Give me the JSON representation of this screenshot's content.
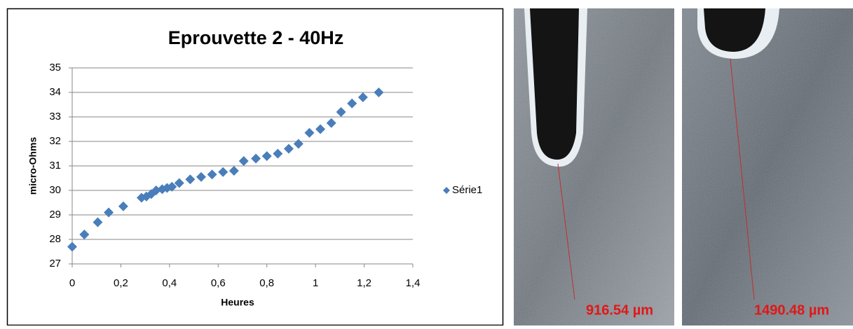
{
  "chart_data": {
    "type": "scatter",
    "title": "Eprouvette 2 - 40Hz",
    "x_label": "Heures",
    "y_label": "micro-Ohms",
    "series": [
      {
        "name": "Série1",
        "color": "#4a7ebb",
        "x": [
          0,
          0.05,
          0.105,
          0.15,
          0.21,
          0.285,
          0.305,
          0.325,
          0.345,
          0.37,
          0.39,
          0.41,
          0.44,
          0.485,
          0.53,
          0.575,
          0.62,
          0.665,
          0.705,
          0.755,
          0.8,
          0.845,
          0.89,
          0.93,
          0.975,
          1.02,
          1.065,
          1.105,
          1.15,
          1.195,
          1.26
        ],
        "values": [
          27.7,
          28.2,
          28.7,
          29.1,
          29.35,
          29.7,
          29.75,
          29.85,
          30.0,
          30.05,
          30.1,
          30.15,
          30.3,
          30.45,
          30.55,
          30.65,
          30.75,
          30.8,
          31.2,
          31.3,
          31.4,
          31.5,
          31.7,
          31.9,
          32.35,
          32.5,
          32.75,
          33.2,
          33.55,
          33.8,
          34.0
        ]
      }
    ],
    "xlim": [
      0,
      1.4
    ],
    "ylim": [
      27,
      35
    ],
    "xticks": [
      0,
      {
        "value": 0.2,
        "label": "0,2"
      },
      {
        "value": 0.4,
        "label": "0,4"
      },
      {
        "value": 0.6,
        "label": "0,6"
      },
      {
        "value": 0.8,
        "label": "0,8"
      },
      1,
      {
        "value": 1.2,
        "label": "1,2"
      },
      {
        "value": 1.4,
        "label": "1,4"
      }
    ],
    "yticks": [
      27,
      28,
      29,
      30,
      31,
      32,
      33,
      34,
      35
    ],
    "grid": true,
    "legend": "right"
  },
  "images": [
    {
      "measurement": "916.54 µm"
    },
    {
      "measurement": "1490.48 µm"
    }
  ]
}
